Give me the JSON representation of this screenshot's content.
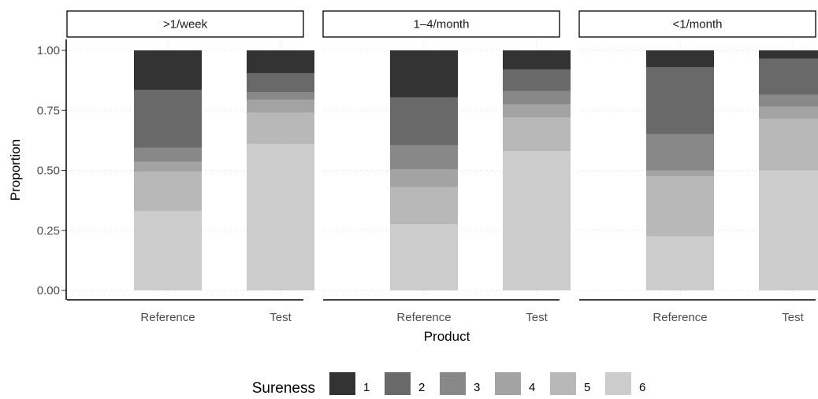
{
  "chart_data": {
    "type": "bar",
    "stacked": true,
    "xlabel": "Product",
    "ylabel": "Proportion",
    "ylim": [
      0,
      1
    ],
    "y_ticks": [
      "0.00",
      "0.25",
      "0.50",
      "0.75",
      "1.00"
    ],
    "categories": [
      "Reference",
      "Test"
    ],
    "grid": true,
    "legend": {
      "title": "Sureness",
      "position": "bottom",
      "items": [
        {
          "label": "1",
          "color": "#333333"
        },
        {
          "label": "2",
          "color": "#696969"
        },
        {
          "label": "3",
          "color": "#888888"
        },
        {
          "label": "4",
          "color": "#a3a3a3"
        },
        {
          "label": "5",
          "color": "#b8b8b8"
        },
        {
          "label": "6",
          "color": "#cccccc"
        }
      ]
    },
    "panels": [
      {
        "title": ">1/week",
        "bars": [
          {
            "category": "Reference",
            "values": {
              "1": 0.165,
              "2": 0.24,
              "3": 0.06,
              "4": 0.04,
              "5": 0.165,
              "6": 0.33
            }
          },
          {
            "category": "Test",
            "values": {
              "1": 0.095,
              "2": 0.08,
              "3": 0.03,
              "4": 0.055,
              "5": 0.13,
              "6": 0.61
            }
          }
        ]
      },
      {
        "title": "1–4/month",
        "bars": [
          {
            "category": "Reference",
            "values": {
              "1": 0.195,
              "2": 0.2,
              "3": 0.1,
              "4": 0.075,
              "5": 0.155,
              "6": 0.275
            }
          },
          {
            "category": "Test",
            "values": {
              "1": 0.08,
              "2": 0.09,
              "3": 0.055,
              "4": 0.055,
              "5": 0.14,
              "6": 0.58
            }
          }
        ]
      },
      {
        "title": "<1/month",
        "bars": [
          {
            "category": "Reference",
            "values": {
              "1": 0.07,
              "2": 0.28,
              "3": 0.15,
              "4": 0.025,
              "5": 0.25,
              "6": 0.225
            }
          },
          {
            "category": "Test",
            "values": {
              "1": 0.035,
              "2": 0.15,
              "3": 0.05,
              "4": 0.05,
              "5": 0.215,
              "6": 0.5
            }
          }
        ]
      }
    ]
  }
}
